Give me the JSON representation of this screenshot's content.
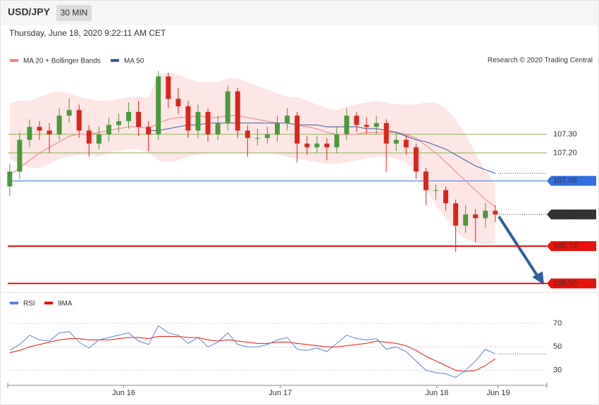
{
  "chart_data": {
    "type": "candlestick",
    "title": "USD/JPY",
    "timeframe": "30 MIN",
    "subtitle": "Thursday, June 18, 2020 9:22:11 AM CET",
    "source": "Research © 2020 Trading Central",
    "up_color": "#4a9a3a",
    "down_color": "#d9261c",
    "xlim": [
      -0.2,
      54.2
    ],
    "xticks": [
      {
        "value": 11.5,
        "label": "Jun 16"
      },
      {
        "value": 27.3,
        "label": "Jun 17"
      },
      {
        "value": 43.1,
        "label": "Jun 18"
      },
      {
        "value": 49.3,
        "label": "Jun 19"
      }
    ],
    "ylim": [
      106.455,
      107.643
    ],
    "open": [
      107.02,
      107.1,
      107.27,
      107.34,
      107.32,
      107.3,
      107.4,
      107.43,
      107.32,
      107.25,
      107.3,
      107.35,
      107.37,
      107.42,
      107.34,
      107.3,
      107.61,
      107.49,
      107.45,
      107.32,
      107.42,
      107.3,
      107.36,
      107.53,
      107.32,
      107.28,
      107.28,
      107.3,
      107.36,
      107.4,
      107.25,
      107.23,
      107.25,
      107.23,
      107.3,
      107.4,
      107.35,
      107.34,
      107.36,
      107.25,
      107.27,
      107.23,
      107.1,
      107.0,
      107.0,
      106.93,
      106.81,
      106.87,
      106.85,
      106.89
    ],
    "high": [
      107.14,
      107.31,
      107.38,
      107.37,
      107.36,
      107.44,
      107.49,
      107.46,
      107.35,
      107.34,
      107.39,
      107.41,
      107.47,
      107.48,
      107.37,
      107.64,
      107.63,
      107.55,
      107.48,
      107.46,
      107.44,
      107.4,
      107.56,
      107.55,
      107.35,
      107.33,
      107.34,
      107.4,
      107.44,
      107.42,
      107.29,
      107.29,
      107.28,
      107.34,
      107.44,
      107.42,
      107.39,
      107.4,
      107.38,
      107.31,
      107.3,
      107.25,
      107.12,
      107.03,
      107.02,
      106.95,
      106.92,
      106.9,
      106.93,
      106.92
    ],
    "low": [
      106.97,
      107.06,
      107.23,
      107.27,
      107.2,
      107.27,
      107.36,
      107.28,
      107.18,
      107.22,
      107.26,
      107.31,
      107.33,
      107.29,
      107.21,
      107.27,
      107.44,
      107.41,
      107.28,
      107.28,
      107.26,
      107.27,
      107.32,
      107.28,
      107.18,
      107.24,
      107.25,
      107.26,
      107.32,
      107.15,
      107.19,
      107.2,
      107.16,
      107.2,
      107.27,
      107.31,
      107.3,
      107.3,
      107.1,
      107.21,
      107.19,
      107.06,
      106.92,
      106.95,
      106.89,
      106.67,
      106.77,
      106.72,
      106.8,
      106.83
    ],
    "close": [
      107.1,
      107.27,
      107.34,
      107.32,
      107.3,
      107.4,
      107.43,
      107.32,
      107.25,
      107.3,
      107.35,
      107.37,
      107.42,
      107.34,
      107.3,
      107.61,
      107.49,
      107.45,
      107.32,
      107.42,
      107.3,
      107.36,
      107.53,
      107.32,
      107.28,
      107.28,
      107.3,
      107.36,
      107.4,
      107.25,
      107.23,
      107.25,
      107.23,
      107.3,
      107.4,
      107.35,
      107.34,
      107.36,
      107.25,
      107.27,
      107.23,
      107.1,
      107.0,
      107.0,
      106.93,
      106.81,
      106.87,
      106.85,
      106.89,
      106.87
    ],
    "series": [
      {
        "name": "MA 20 + Bollinger Bands",
        "color": "#f08080",
        "band_color": "#fde0e0",
        "values": [
          107.08,
          107.12,
          107.16,
          107.2,
          107.23,
          107.26,
          107.29,
          107.3,
          107.3,
          107.31,
          107.32,
          107.33,
          107.34,
          107.34,
          107.33,
          107.36,
          107.38,
          107.39,
          107.39,
          107.4,
          107.39,
          107.39,
          107.4,
          107.4,
          107.39,
          107.38,
          107.37,
          107.36,
          107.36,
          107.35,
          107.34,
          107.33,
          107.31,
          107.3,
          107.3,
          107.3,
          107.31,
          107.31,
          107.31,
          107.31,
          107.3,
          107.28,
          107.24,
          107.2,
          107.15,
          107.1,
          107.05,
          107.0,
          106.95,
          106.91
        ],
        "upper": [
          107.47,
          107.48,
          107.48,
          107.5,
          107.52,
          107.53,
          107.52,
          107.5,
          107.49,
          107.48,
          107.48,
          107.49,
          107.5,
          107.5,
          107.5,
          107.62,
          107.63,
          107.62,
          107.6,
          107.58,
          107.58,
          107.58,
          107.6,
          107.6,
          107.58,
          107.56,
          107.54,
          107.52,
          107.5,
          107.5,
          107.48,
          107.46,
          107.44,
          107.43,
          107.45,
          107.46,
          107.47,
          107.48,
          107.47,
          107.46,
          107.46,
          107.46,
          107.47,
          107.47,
          107.44,
          107.38,
          107.3,
          107.2,
          107.1,
          107.04
        ],
        "lower": [
          107.17,
          107.14,
          107.12,
          107.12,
          107.14,
          107.17,
          107.18,
          107.19,
          107.19,
          107.18,
          107.2,
          107.21,
          107.22,
          107.22,
          107.2,
          107.16,
          107.15,
          107.16,
          107.18,
          107.19,
          107.2,
          107.2,
          107.2,
          107.2,
          107.2,
          107.2,
          107.2,
          107.19,
          107.18,
          107.17,
          107.16,
          107.15,
          107.14,
          107.14,
          107.15,
          107.16,
          107.17,
          107.18,
          107.18,
          107.17,
          107.15,
          107.1,
          107.0,
          106.92,
          106.85,
          106.78,
          106.74,
          106.72,
          106.71,
          106.72
        ]
      },
      {
        "name": "MA 50",
        "color": "#34599a",
        "values": [
          null,
          null,
          null,
          null,
          null,
          null,
          null,
          null,
          null,
          null,
          null,
          null,
          null,
          null,
          107.32,
          107.32,
          107.33,
          107.34,
          107.35,
          107.35,
          107.36,
          107.36,
          107.36,
          107.36,
          107.36,
          107.36,
          107.36,
          107.36,
          107.36,
          107.35,
          107.35,
          107.35,
          107.34,
          107.34,
          107.34,
          107.34,
          107.33,
          107.33,
          107.32,
          107.31,
          107.29,
          107.27,
          107.26,
          107.24,
          107.22,
          107.19,
          107.16,
          107.13,
          107.11,
          107.09
        ]
      }
    ],
    "levels": [
      {
        "value": 107.3,
        "label": "107.30",
        "color": "#8db34a",
        "boxed": false,
        "width": 1
      },
      {
        "value": 107.2,
        "label": "107.20",
        "color": "#8db34a",
        "boxed": false,
        "width": 1
      },
      {
        "value": 107.05,
        "color": "#2f6fe0",
        "boxed": true,
        "width": 1
      },
      {
        "value": 106.7,
        "label": "106.70",
        "color": "#e8120c",
        "boxed": true,
        "width": 2
      },
      {
        "value": 106.5,
        "label": "106.50",
        "color": "#e8120c",
        "boxed": true,
        "width": 2
      }
    ],
    "last_price": {
      "value": 106.87,
      "color": "#333333"
    },
    "rsi": {
      "ylim": [
        19,
        82
      ],
      "yticks": [
        30,
        50,
        70
      ],
      "series": [
        {
          "name": "RSI",
          "color": "#5b84d6",
          "values": [
            47,
            52,
            60,
            56,
            55,
            62,
            63,
            54,
            49,
            56,
            58,
            60,
            62,
            55,
            52,
            68,
            62,
            60,
            53,
            58,
            50,
            54,
            62,
            52,
            50,
            50,
            52,
            56,
            58,
            48,
            47,
            49,
            46,
            53,
            60,
            57,
            56,
            57,
            48,
            50,
            46,
            38,
            30,
            28,
            27,
            24,
            30,
            38,
            48,
            44
          ]
        },
        {
          "name": "9MA",
          "color": "#e8120c",
          "values": [
            45,
            47,
            50,
            52,
            54,
            56,
            57,
            57,
            56,
            56,
            56,
            57,
            58,
            58,
            57,
            59,
            59,
            59,
            58,
            58,
            56,
            55,
            56,
            55,
            54,
            53,
            53,
            54,
            54,
            53,
            52,
            51,
            50,
            50,
            51,
            52,
            53,
            55,
            54,
            53,
            51,
            47,
            42,
            38,
            34,
            30,
            29,
            30,
            34,
            40
          ]
        }
      ]
    }
  }
}
